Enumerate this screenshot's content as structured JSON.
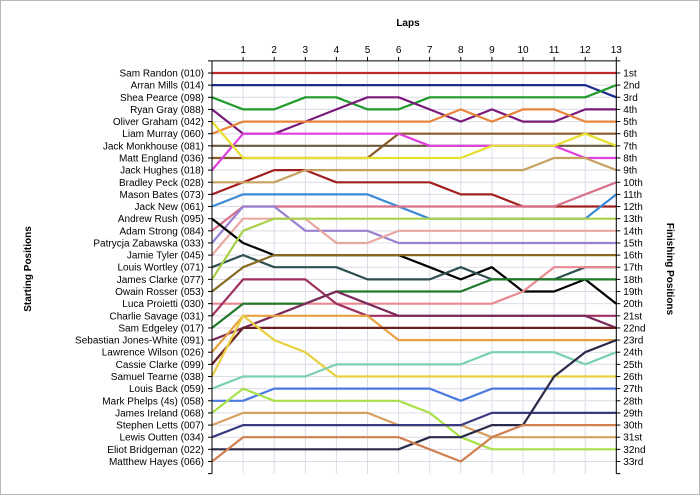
{
  "chart_data": {
    "type": "line",
    "title": "",
    "xlabel": "Laps",
    "ylabel_left": "Starting Positions",
    "ylabel_right": "Finishing Positions",
    "laps": [
      1,
      2,
      3,
      4,
      5,
      6,
      7,
      8,
      9,
      10,
      11,
      12,
      13
    ],
    "finish_labels": [
      "1st",
      "2nd",
      "3rd",
      "4th",
      "5th",
      "6th",
      "7th",
      "8th",
      "9th",
      "10th",
      "11th",
      "12th",
      "13th",
      "14th",
      "15th",
      "16th",
      "17th",
      "18th",
      "19th",
      "20th",
      "21st",
      "22nd",
      "23rd",
      "24th",
      "25th",
      "26th",
      "27th",
      "28th",
      "29th",
      "30th",
      "31st",
      "32nd",
      "33rd"
    ],
    "series": [
      {
        "name": "Sam Randon (010)",
        "color": "#c0282c",
        "positions": [
          1,
          1,
          1,
          1,
          1,
          1,
          1,
          1,
          1,
          1,
          1,
          1,
          1,
          1
        ]
      },
      {
        "name": "Arran Mills (014)",
        "color": "#1c2e8a",
        "positions": [
          2,
          2,
          2,
          2,
          2,
          2,
          2,
          2,
          2,
          2,
          2,
          2,
          2,
          3
        ]
      },
      {
        "name": "Shea Pearce (098)",
        "color": "#1e9a28",
        "positions": [
          3,
          4,
          4,
          3,
          3,
          4,
          4,
          3,
          3,
          3,
          3,
          3,
          3,
          2
        ]
      },
      {
        "name": "Ryan Gray (088)",
        "color": "#7a1a7a",
        "positions": [
          4,
          6,
          6,
          5,
          4,
          3,
          3,
          4,
          5,
          4,
          5,
          5,
          4,
          4
        ]
      },
      {
        "name": "Liam Murray (060)",
        "color": "#e8843a",
        "positions": [
          6,
          5,
          5,
          5,
          5,
          5,
          5,
          5,
          4,
          5,
          4,
          4,
          5,
          5
        ]
      },
      {
        "name": "Matt England (036)",
        "color": "#8a5a28",
        "positions": [
          8,
          8,
          8,
          8,
          8,
          8,
          6,
          6,
          6,
          6,
          6,
          6,
          6,
          6
        ]
      },
      {
        "name": "Jack Monkhouse (081)",
        "color": "#6a5a3a",
        "positions": [
          7,
          7,
          7,
          7,
          7,
          7,
          7,
          7,
          7,
          7,
          7,
          7,
          7,
          7
        ]
      },
      {
        "name": "Jack Hughes (018)",
        "color": "#e040e0",
        "positions": [
          9,
          6,
          6,
          6,
          6,
          6,
          6,
          7,
          7,
          7,
          7,
          7,
          8,
          8
        ]
      },
      {
        "name": "Oliver Graham (042)",
        "color": "#e8e030",
        "positions": [
          5,
          8,
          8,
          8,
          8,
          8,
          8,
          8,
          8,
          7,
          7,
          7,
          6,
          7
        ]
      },
      {
        "name": "Mason Bates (073)",
        "color": "#a02020",
        "positions": [
          11,
          10,
          9,
          9,
          10,
          10,
          10,
          10,
          11,
          11,
          12,
          12,
          12,
          12
        ]
      },
      {
        "name": "Bradley Peck (028)",
        "color": "#c8a060",
        "positions": [
          10,
          10,
          10,
          9,
          9,
          9,
          9,
          9,
          9,
          9,
          9,
          8,
          8,
          9
        ]
      },
      {
        "name": "Jack New (061)",
        "color": "#3a8ad8",
        "positions": [
          12,
          11,
          11,
          11,
          11,
          11,
          12,
          13,
          13,
          13,
          13,
          13,
          13,
          11
        ]
      },
      {
        "name": "Adam Strong (084)",
        "color": "#d87088",
        "positions": [
          14,
          12,
          12,
          12,
          12,
          12,
          12,
          12,
          12,
          12,
          12,
          12,
          11,
          10
        ]
      },
      {
        "name": "Patrycja Zabawska (033)",
        "color": "#9a80d0",
        "positions": [
          15,
          12,
          12,
          14,
          14,
          14,
          15,
          15,
          15,
          15,
          15,
          15,
          15,
          15
        ]
      },
      {
        "name": "Jamie Tyler (045)",
        "color": "#e8a8a0",
        "positions": [
          16,
          13,
          13,
          13,
          15,
          15,
          14,
          14,
          14,
          14,
          14,
          14,
          14,
          14
        ]
      },
      {
        "name": "Andrew Rush (095)",
        "color": "#000000",
        "positions": [
          13,
          15,
          16,
          16,
          16,
          16,
          16,
          17,
          18,
          17,
          19,
          19,
          18,
          20
        ]
      },
      {
        "name": "Louis Wortley (071)",
        "color": "#2e5050",
        "positions": [
          17,
          16,
          17,
          17,
          17,
          18,
          18,
          18,
          17,
          18,
          18,
          18,
          17,
          17
        ]
      },
      {
        "name": "James Clarke (077)",
        "color": "#a8d048",
        "positions": [
          18,
          14,
          13,
          13,
          13,
          13,
          13,
          13,
          13,
          13,
          13,
          13,
          13,
          13
        ]
      },
      {
        "name": "Owain Rosser (053)",
        "color": "#8a6a20",
        "positions": [
          19,
          17,
          16,
          16,
          16,
          16,
          16,
          16,
          16,
          16,
          16,
          16,
          16,
          16
        ]
      },
      {
        "name": "Luca Proietti (030)",
        "color": "#e88a90",
        "positions": [
          20,
          20,
          20,
          20,
          20,
          20,
          20,
          20,
          20,
          20,
          19,
          17,
          17,
          17
        ]
      },
      {
        "name": "Charlie Savage (031)",
        "color": "#a03060",
        "positions": [
          21,
          18,
          18,
          18,
          20,
          21,
          21,
          21,
          21,
          21,
          21,
          21,
          21,
          21
        ]
      },
      {
        "name": "Sam Edgeley (017)",
        "color": "#1e7a28",
        "positions": [
          22,
          20,
          20,
          20,
          19,
          19,
          19,
          19,
          19,
          18,
          18,
          18,
          18,
          18
        ]
      },
      {
        "name": "Sebastian Jones-White (091)",
        "color": "#7a2a5a",
        "positions": [
          23,
          22,
          21,
          20,
          19,
          20,
          21,
          21,
          21,
          21,
          21,
          21,
          21,
          22
        ]
      },
      {
        "name": "Lawrence Wilson (026)",
        "color": "#e8a040",
        "positions": [
          24,
          21,
          21,
          21,
          21,
          21,
          23,
          23,
          23,
          23,
          23,
          23,
          23,
          23
        ]
      },
      {
        "name": "Cassie Clarke (099)",
        "color": "#6a2020",
        "positions": [
          25,
          22,
          22,
          22,
          22,
          22,
          22,
          22,
          22,
          22,
          22,
          22,
          22,
          22
        ]
      },
      {
        "name": "Samuel Tearne (038)",
        "color": "#e8d040",
        "positions": [
          26,
          21,
          23,
          24,
          26,
          26,
          26,
          26,
          26,
          26,
          26,
          26,
          26,
          26
        ]
      },
      {
        "name": "Louis Back (059)",
        "color": "#7ad0b0",
        "positions": [
          27,
          26,
          26,
          26,
          25,
          25,
          25,
          25,
          25,
          24,
          24,
          24,
          25,
          24
        ]
      },
      {
        "name": "Mark Phelps (4s) (058)",
        "color": "#4a7ae0",
        "positions": [
          28,
          28,
          27,
          27,
          27,
          27,
          27,
          27,
          28,
          27,
          27,
          27,
          27,
          27
        ]
      },
      {
        "name": "James Ireland (068)",
        "color": "#a8e048",
        "positions": [
          29,
          27,
          28,
          28,
          28,
          28,
          28,
          29,
          31,
          32,
          32,
          32,
          32,
          32
        ]
      },
      {
        "name": "Stephen Letts (007)",
        "color": "#d8a060",
        "positions": [
          30,
          29,
          29,
          29,
          29,
          29,
          30,
          30,
          30,
          31,
          31,
          31,
          31,
          31
        ]
      },
      {
        "name": "Lewis Outten (034)",
        "color": "#3a3a80",
        "positions": [
          31,
          30,
          30,
          30,
          30,
          30,
          30,
          30,
          30,
          29,
          29,
          29,
          29,
          29
        ]
      },
      {
        "name": "Eliot Bridgeman (022)",
        "color": "#2a2a4a",
        "positions": [
          32,
          32,
          32,
          32,
          32,
          32,
          32,
          31,
          31,
          30,
          30,
          26,
          24,
          23
        ]
      },
      {
        "name": "Matthew Hayes (066)",
        "color": "#d08050",
        "positions": [
          33,
          31,
          31,
          31,
          31,
          31,
          31,
          32,
          33,
          31,
          30,
          30,
          30,
          30
        ]
      }
    ]
  }
}
